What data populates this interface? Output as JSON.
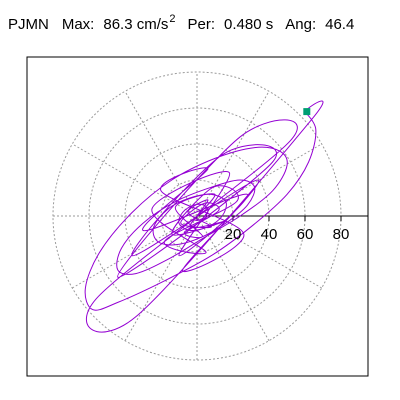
{
  "header": {
    "station": "PJMN",
    "max_label": "Max:",
    "max_value": "86.3 cm/s",
    "max_unit_exp": "2",
    "per_label": "Per:",
    "per_value": "0.480 s",
    "ang_label": "Ang:",
    "ang_value": "46.4"
  },
  "colors": {
    "trace": "#9400d3",
    "marker": "#009e73",
    "grid": "#9a9a9a",
    "axis": "#000000",
    "frame": "#000000"
  },
  "chart_data": {
    "type": "scatter",
    "title": "",
    "xlabel": "",
    "ylabel": "",
    "grid": true,
    "grid_type": "polar",
    "ring_ticks": [
      20,
      40,
      60,
      80
    ],
    "ring_tick_labels": [
      "20",
      "40",
      "60",
      "80"
    ],
    "xlim": [
      -92,
      92
    ],
    "ylim": [
      -92,
      92
    ],
    "series": [
      {
        "points": [
          [
            0,
            0
          ],
          [
            6,
            9
          ],
          [
            -5,
            2
          ],
          [
            8,
            -6
          ],
          [
            -9,
            -4
          ],
          [
            4,
            7
          ],
          [
            12,
            3
          ],
          [
            -7,
            -9
          ],
          [
            3,
            -11
          ],
          [
            -12,
            5
          ],
          [
            10,
            12
          ],
          [
            -4,
            -6
          ],
          [
            15,
            -3
          ],
          [
            -14,
            -10
          ],
          [
            9,
            16
          ],
          [
            22,
            8
          ],
          [
            -18,
            -14
          ],
          [
            5,
            -20
          ],
          [
            -25,
            4
          ],
          [
            18,
            24
          ],
          [
            -10,
            -22
          ],
          [
            28,
            12
          ],
          [
            -30,
            -8
          ],
          [
            6,
            26
          ],
          [
            -20,
            14
          ],
          [
            26,
            -10
          ],
          [
            -8,
            -30
          ],
          [
            34,
            20
          ],
          [
            -36,
            -22
          ],
          [
            14,
            34
          ],
          [
            42,
            30
          ],
          [
            -44,
            -34
          ],
          [
            24,
            44
          ],
          [
            52,
            42
          ],
          [
            -56,
            -46
          ],
          [
            -34,
            -56
          ],
          [
            64,
            54
          ],
          [
            60,
            58
          ],
          [
            66,
            48
          ],
          [
            62,
            30
          ],
          [
            50,
            12
          ],
          [
            30,
            -6
          ],
          [
            8,
            -22
          ],
          [
            -18,
            -36
          ],
          [
            -44,
            -48
          ],
          [
            -58,
            -52
          ],
          [
            -62,
            -40
          ],
          [
            -54,
            -20
          ],
          [
            -36,
            2
          ],
          [
            -14,
            20
          ],
          [
            10,
            32
          ],
          [
            32,
            38
          ],
          [
            46,
            36
          ],
          [
            50,
            28
          ],
          [
            42,
            14
          ],
          [
            24,
            0
          ],
          [
            4,
            -12
          ],
          [
            -16,
            -24
          ],
          [
            -34,
            -32
          ],
          [
            -44,
            -30
          ],
          [
            -42,
            -18
          ],
          [
            -30,
            -4
          ],
          [
            -12,
            8
          ],
          [
            8,
            16
          ],
          [
            24,
            20
          ],
          [
            32,
            16
          ],
          [
            28,
            6
          ],
          [
            16,
            -4
          ],
          [
            2,
            -12
          ],
          [
            -12,
            -16
          ],
          [
            -22,
            -14
          ],
          [
            -24,
            -6
          ],
          [
            -16,
            4
          ],
          [
            -4,
            10
          ],
          [
            8,
            12
          ],
          [
            16,
            8
          ],
          [
            14,
            0
          ],
          [
            6,
            -6
          ],
          [
            -4,
            -8
          ],
          [
            -10,
            -4
          ],
          [
            -8,
            2
          ],
          [
            -2,
            6
          ],
          [
            4,
            6
          ],
          [
            6,
            2
          ],
          [
            2,
            -2
          ],
          [
            -2,
            -2
          ],
          [
            0,
            0
          ]
        ]
      }
    ],
    "marker_point": [
      61,
      58
    ]
  }
}
